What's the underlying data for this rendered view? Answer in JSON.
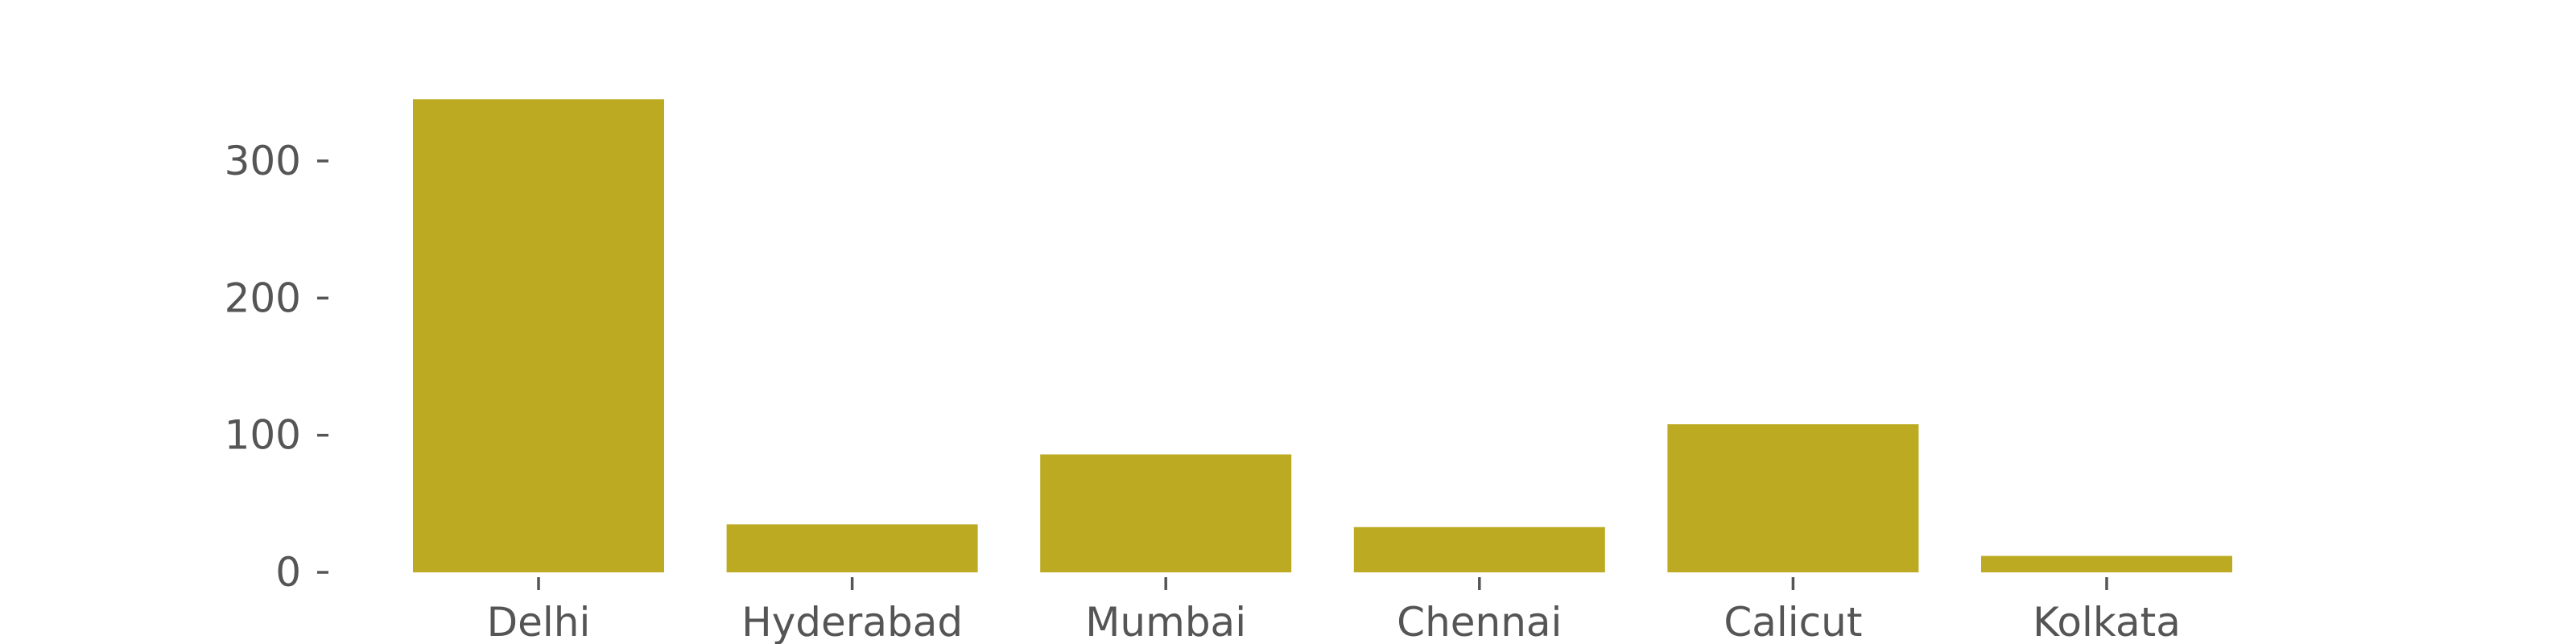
{
  "chart_data": {
    "type": "bar",
    "title": "",
    "xlabel": "",
    "ylabel": "",
    "categories": [
      "Delhi",
      "Hyderabad",
      "Mumbai",
      "Chennai",
      "Calicut",
      "Kolkata"
    ],
    "values": [
      345,
      35,
      86,
      33,
      108,
      12
    ],
    "ylim": [
      0,
      362
    ],
    "yticks": [
      0,
      100,
      200,
      300
    ],
    "grid": false,
    "legend": "none",
    "bar_color": "#bcab22",
    "text_color": "#555555"
  }
}
